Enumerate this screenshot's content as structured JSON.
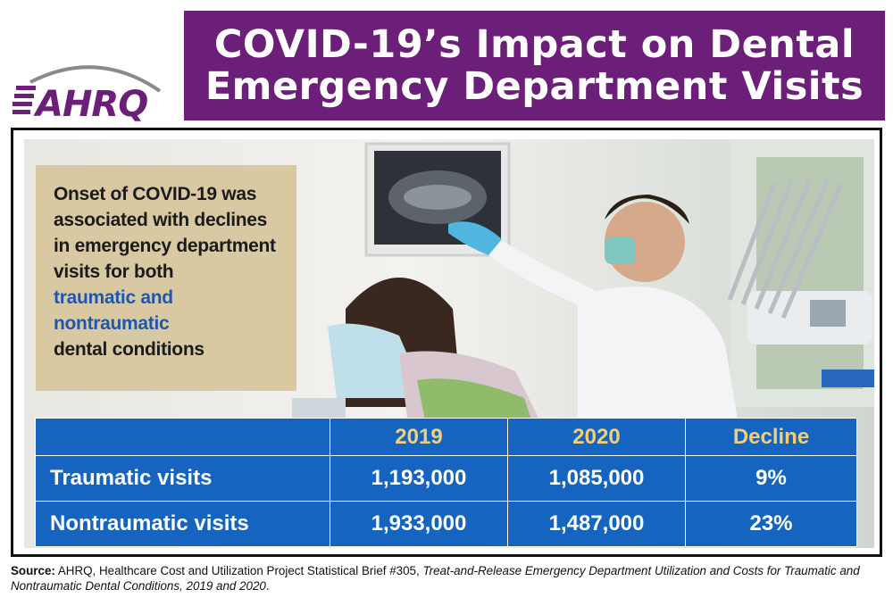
{
  "logo": {
    "text": "AHRQ"
  },
  "title": {
    "line1": "COVID-19’s Impact on Dental",
    "line2": "Emergency Department Visits"
  },
  "callout": {
    "line1": "Onset of COVID-19 was",
    "line2": "associated with declines",
    "line3": "in emergency department",
    "line4": "visits for both",
    "highlight1": "traumatic and",
    "highlight2": "nontraumatic",
    "line5": "dental conditions"
  },
  "table": {
    "headers": [
      "",
      "2019",
      "2020",
      "Decline"
    ],
    "rows": [
      {
        "label": "Traumatic visits",
        "y2019": "1,193,000",
        "y2020": "1,085,000",
        "decline": "9%"
      },
      {
        "label": "Nontraumatic visits",
        "y2019": "1,933,000",
        "y2020": "1,487,000",
        "decline": "23%"
      }
    ]
  },
  "source": {
    "label": "Source:",
    "text": "AHRQ, Healthcare Cost and Utilization Project Statistical Brief #305,",
    "title": "Treat-and-Release Emergency Department Utilization and Costs for Traumatic and Nontraumatic Dental Conditions, 2019 and 2020",
    "end": "."
  },
  "colors": {
    "banner": "#6b1f78",
    "table_blue": "#1565c0",
    "header_gold": "#f1cf7a",
    "highlight_blue": "#1f56b0",
    "callout_bg": "#d8c9a3"
  }
}
